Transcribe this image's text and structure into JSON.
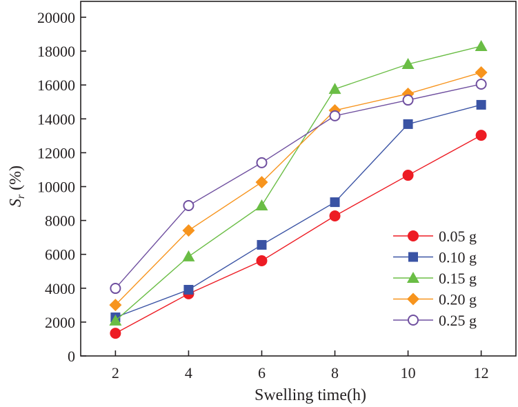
{
  "chart_data": {
    "type": "line",
    "xlabel": "Swelling time(h)",
    "ylabel_main": "S",
    "ylabel_sub": "r",
    "ylabel_unit": " (%)",
    "x": [
      2,
      4,
      6,
      8,
      10,
      12
    ],
    "xticks": [
      "2",
      "4",
      "6",
      "8",
      "10",
      "12"
    ],
    "xlim": [
      1.05,
      12.95
    ],
    "ylim": [
      0,
      20000
    ],
    "yticks": [
      "0",
      "2000",
      "4000",
      "6000",
      "8000",
      "10000",
      "12000",
      "14000",
      "16000",
      "18000",
      "20000"
    ],
    "grid": false,
    "legend_position": "bottom-right",
    "series": [
      {
        "name": "0.05 g",
        "color": "#ed1c24",
        "marker": "circle",
        "values": [
          1340,
          3670,
          5620,
          8270,
          10670,
          13030
        ]
      },
      {
        "name": "0.10 g",
        "color": "#3a53a4",
        "marker": "square",
        "values": [
          2280,
          3910,
          6560,
          9080,
          13690,
          14830
        ]
      },
      {
        "name": "0.15 g",
        "color": "#6abd45",
        "marker": "triangle",
        "values": [
          2080,
          5870,
          8880,
          15760,
          17230,
          18290
        ]
      },
      {
        "name": "0.20 g",
        "color": "#f7941d",
        "marker": "diamond",
        "values": [
          3010,
          7410,
          10260,
          14500,
          15480,
          16740
        ]
      },
      {
        "name": "0.25 g",
        "color": "#6f4f9f",
        "marker": "open-circle",
        "values": [
          3990,
          8880,
          11410,
          14180,
          15110,
          16050
        ]
      }
    ]
  }
}
